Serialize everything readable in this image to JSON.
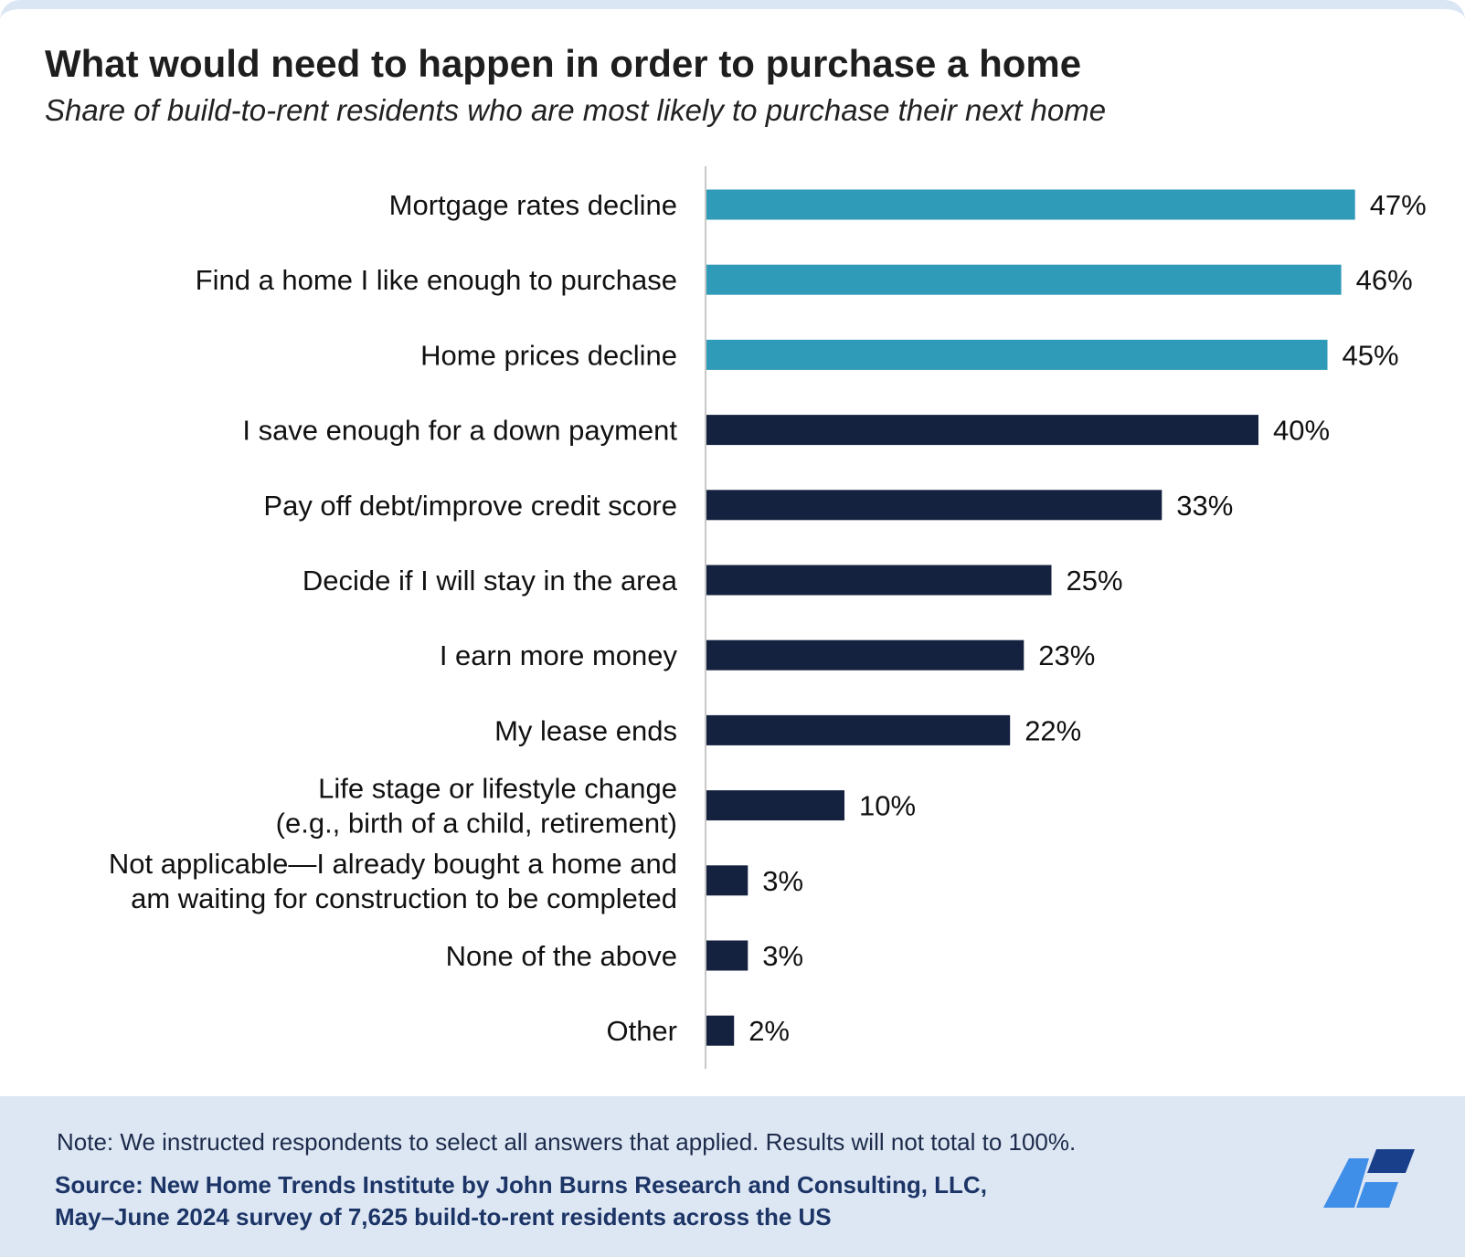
{
  "title": "What would need to happen in order to purchase a home",
  "subtitle": "Share of build-to-rent residents who are most likely to purchase their next home",
  "note": "Note: We instructed respondents to select all answers that applied. Results will not total to 100%.",
  "source_line1": "Source: New Home Trends Institute by John Burns Research and Consulting, LLC,",
  "source_line2": "May–June 2024 survey of 7,625 build-to-rent residents across the US",
  "colors": {
    "highlight": "#2f9bb9",
    "default": "#15223f",
    "footer_bg": "#dde7f4",
    "logo_light": "#3f8ee8",
    "logo_dark": "#1a3f8a"
  },
  "logo_icon": "company-logo-icon",
  "chart_data": {
    "type": "bar",
    "orientation": "horizontal",
    "categories": [
      [
        "Mortgage rates decline"
      ],
      [
        "Find a home I like enough to purchase"
      ],
      [
        "Home prices decline"
      ],
      [
        "I save enough for a down payment"
      ],
      [
        "Pay off debt/improve credit score"
      ],
      [
        "Decide if I will stay in the area"
      ],
      [
        "I earn more money"
      ],
      [
        "My lease ends"
      ],
      [
        "Life stage or lifestyle change",
        "(e.g., birth of a child, retirement)"
      ],
      [
        "Not applicable—I already bought a home and",
        "am waiting for construction to be completed"
      ],
      [
        "None of the above"
      ],
      [
        "Other"
      ]
    ],
    "values": [
      47,
      46,
      45,
      40,
      33,
      25,
      23,
      22,
      10,
      3,
      3,
      2
    ],
    "value_labels": [
      "47%",
      "46%",
      "45%",
      "40%",
      "33%",
      "25%",
      "23%",
      "22%",
      "10%",
      "3%",
      "3%",
      "2%"
    ],
    "highlighted": [
      true,
      true,
      true,
      false,
      false,
      false,
      false,
      false,
      false,
      false,
      false,
      false
    ],
    "xlim": [
      0,
      50
    ],
    "grid": false,
    "legend": "none"
  }
}
